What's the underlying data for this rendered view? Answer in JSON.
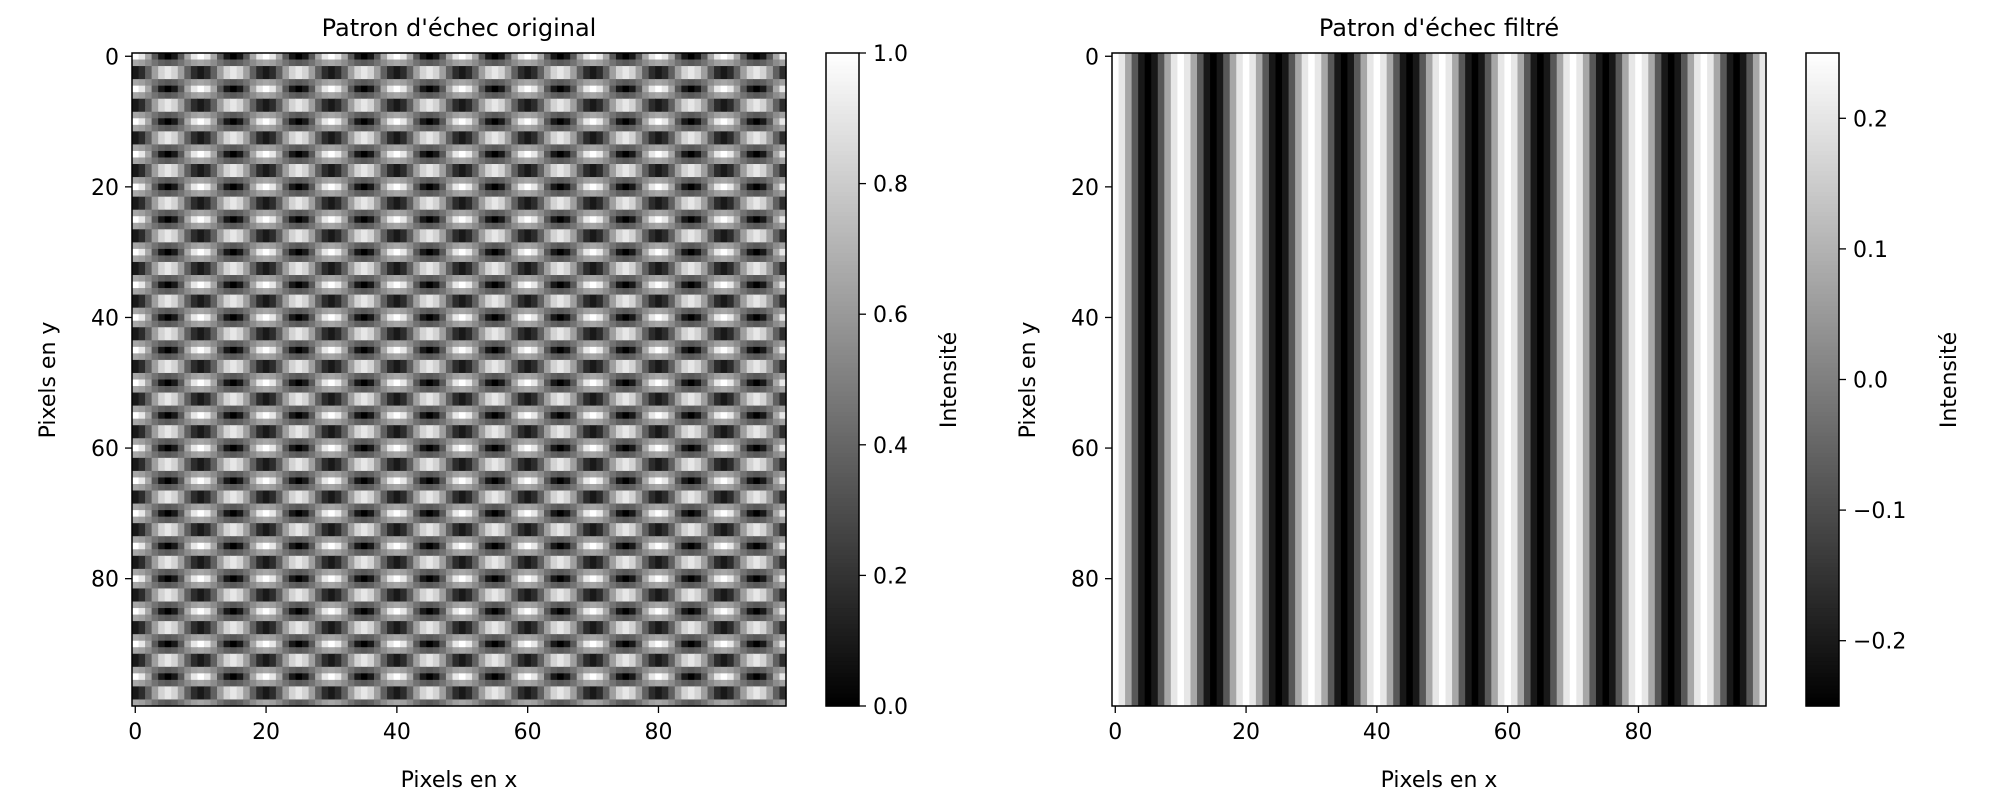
{
  "chart_data": [
    {
      "type": "heatmap",
      "title": "Patron d'échec original",
      "xlabel": "Pixels en x",
      "ylabel": "Pixels en y",
      "xlim": [
        -0.5,
        99.5
      ],
      "ylim": [
        99.5,
        -0.5
      ],
      "x_ticks": [
        0,
        20,
        40,
        60,
        80
      ],
      "y_ticks": [
        0,
        20,
        40,
        60,
        80
      ],
      "colormap": "gray",
      "image": {
        "size": [
          100,
          100
        ],
        "pattern": "product",
        "x_period": 10,
        "y_period": 5,
        "formula": "0.5 + 0.5 * cos(2*pi*x/x_period) * cos(2*pi*y/y_period)"
      },
      "colorbar": {
        "label": "Intensité",
        "range": [
          0.0,
          1.0
        ],
        "ticks": [
          0.0,
          0.2,
          0.4,
          0.6,
          0.8,
          1.0
        ],
        "tick_labels": [
          "0.0",
          "0.2",
          "0.4",
          "0.6",
          "0.8",
          "1.0"
        ]
      }
    },
    {
      "type": "heatmap",
      "title": "Patron d'échec filtré",
      "xlabel": "Pixels en x",
      "ylabel": "Pixels en y",
      "xlim": [
        -0.5,
        99.5
      ],
      "ylim": [
        99.5,
        -0.5
      ],
      "x_ticks": [
        0,
        20,
        40,
        60,
        80
      ],
      "y_ticks": [
        0,
        20,
        40,
        60,
        80
      ],
      "colormap": "gray",
      "image": {
        "size": [
          100,
          100
        ],
        "pattern": "vertical",
        "x_period": 10,
        "formula": "0.25 * cos(2*pi*x/x_period)"
      },
      "colorbar": {
        "label": "Intensité",
        "range": [
          -0.25,
          0.25
        ],
        "ticks": [
          -0.2,
          -0.1,
          0.0,
          0.1,
          0.2
        ],
        "tick_labels": [
          "−0.2",
          "−0.1",
          "0.0",
          "0.1",
          "0.2"
        ]
      }
    }
  ]
}
